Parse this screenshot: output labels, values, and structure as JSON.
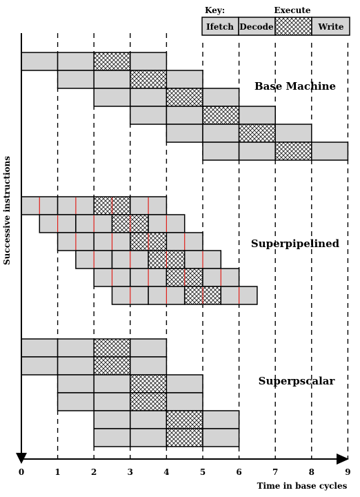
{
  "key": {
    "title": "Key:",
    "execute_label": "Execute",
    "items": [
      "Ifetch",
      "Decode",
      "",
      "Write"
    ]
  },
  "sections": [
    {
      "name": "Base Machine",
      "instructions": [
        {
          "start": 0,
          "width": 1
        },
        {
          "start": 1,
          "width": 1
        },
        {
          "start": 2,
          "width": 1
        },
        {
          "start": 3,
          "width": 1
        },
        {
          "start": 4,
          "width": 1
        },
        {
          "start": 5,
          "width": 1
        }
      ]
    },
    {
      "name": "Superpipelined",
      "instructions": [
        {
          "start": 0,
          "width": 1
        },
        {
          "start": 0.5,
          "width": 1
        },
        {
          "start": 1,
          "width": 1
        },
        {
          "start": 1.5,
          "width": 1
        },
        {
          "start": 2,
          "width": 1
        },
        {
          "start": 2.5,
          "width": 1
        }
      ]
    },
    {
      "name": "Superpscalar",
      "instructions": [
        {
          "start": 0,
          "width": 1
        },
        {
          "start": 0,
          "width": 1
        },
        {
          "start": 1,
          "width": 1
        },
        {
          "start": 1,
          "width": 1
        },
        {
          "start": 2,
          "width": 1
        },
        {
          "start": 2,
          "width": 1
        }
      ]
    }
  ],
  "axis": {
    "x_title": "Time in base cycles",
    "y_title": "Successive instructions",
    "ticks": [
      "0",
      "1",
      "2",
      "3",
      "4",
      "5",
      "6",
      "7",
      "8",
      "9"
    ]
  },
  "colors": {
    "stage_fill": "#d4d4d4",
    "stroke": "#000000",
    "substage_divider": "#e0201a"
  }
}
